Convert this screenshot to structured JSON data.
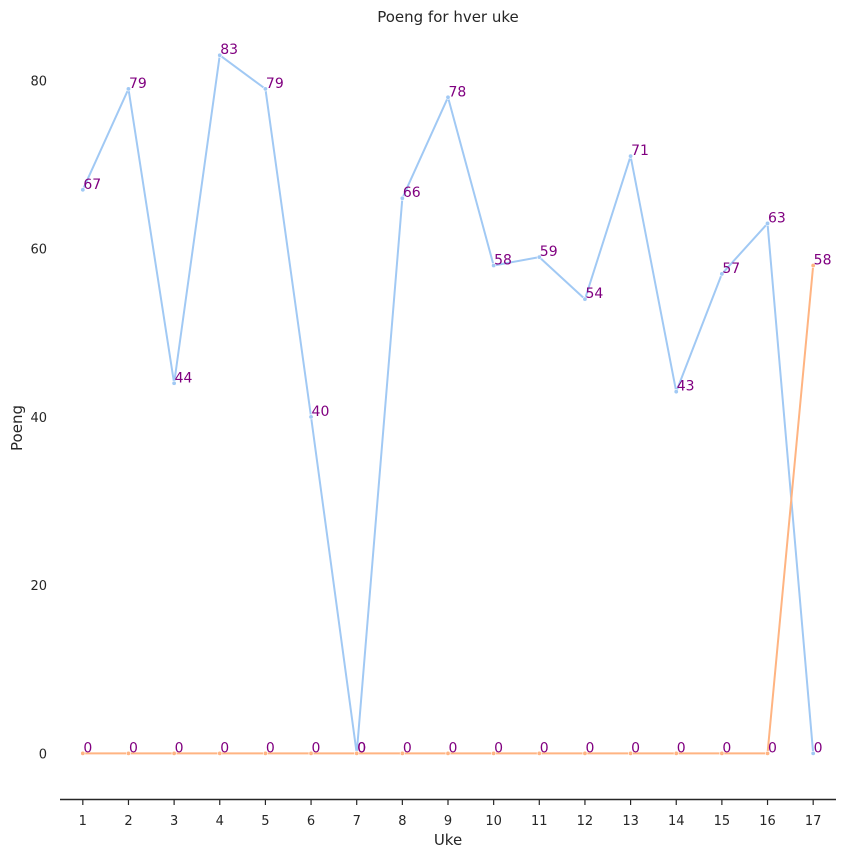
{
  "chart_data": {
    "type": "line",
    "title": "Poeng for hver uke",
    "xlabel": "Uke",
    "ylabel": "Poeng",
    "x": [
      1,
      2,
      3,
      4,
      5,
      6,
      7,
      8,
      9,
      10,
      11,
      12,
      13,
      14,
      15,
      16,
      17
    ],
    "xlim": [
      0.5,
      17.5
    ],
    "ylim": [
      -4,
      86
    ],
    "yticks": [
      0,
      20,
      40,
      60,
      80
    ],
    "grid": false,
    "series": [
      {
        "color": "#a1c9f4",
        "values": [
          67,
          79,
          44,
          83,
          79,
          40,
          0,
          66,
          78,
          58,
          59,
          54,
          71,
          43,
          57,
          63,
          0
        ]
      },
      {
        "color": "#ffb482",
        "values": [
          0,
          0,
          0,
          0,
          0,
          0,
          0,
          0,
          0,
          0,
          0,
          0,
          0,
          0,
          0,
          0,
          58
        ]
      }
    ],
    "label_color": "#800080",
    "axis_color": "#262626"
  }
}
